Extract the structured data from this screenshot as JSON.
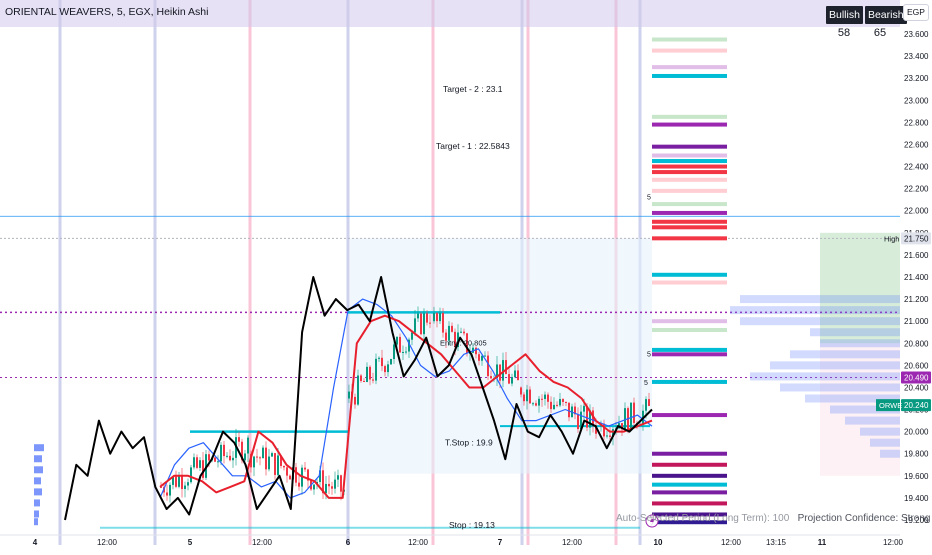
{
  "header": {
    "title": "ORIENTAL WEAVERS, 5, EGX, Heikin Ashi",
    "currency": "EGP"
  },
  "sentiment": {
    "bullish_label": "Bullish",
    "bearish_label": "Bearish",
    "bullish_value": "58",
    "bearish_value": "65"
  },
  "price_axis": {
    "ticks": [
      "23.600",
      "23.400",
      "23.200",
      "23.000",
      "22.800",
      "22.600",
      "22.400",
      "22.200",
      "22.000",
      "21.800",
      "21.600",
      "21.400",
      "21.200",
      "21.000",
      "20.800",
      "20.600",
      "20.400",
      "20.200",
      "20.000",
      "19.800",
      "19.600",
      "19.400",
      "19.200"
    ],
    "high_label": "High",
    "high_value": "21.750",
    "last_value": "20.490",
    "symbol_label": "ORWE",
    "symbol_price": "20.240"
  },
  "time_axis": {
    "ticks": [
      "4",
      "12:00",
      "5",
      "12:00",
      "6",
      "12:00",
      "7",
      "12:00",
      "10",
      "12:00",
      "13:15",
      "11",
      "12:00"
    ]
  },
  "annotations": {
    "target2": "Target - 2 : 23.1",
    "target1": "Target - 1 : 22.5843",
    "tstop": "T.Stop : 19.9",
    "stop": "Stop : 19.13",
    "entry": "Entry : 20.805",
    "fives": [
      "5",
      "5",
      "5"
    ]
  },
  "footer": {
    "autoselect": "Auto-Sel",
    "period_hidden": "ected Period (Long Term): 100",
    "confidence": "Projection Confidence: Strong"
  },
  "colors": {
    "bull_candle": "#089981",
    "bear_candle": "#f23645",
    "red_line": "#e8202d",
    "blue_line": "#2962ff",
    "black_line": "#000000",
    "teal_level": "#00bcd4",
    "purple_dotted": "#9c27b0",
    "session_marker_pink": "#f8bbd0",
    "session_marker_blue": "#c5cae9"
  },
  "chart_data": {
    "type": "candlestick",
    "title": "ORIENTAL WEAVERS, 5, EGX, Heikin Ashi",
    "ylim": [
      19.1,
      23.7
    ],
    "sessions": [
      "4",
      "5",
      "6",
      "7",
      "10",
      "11"
    ],
    "levels": {
      "high": 21.75,
      "last": 20.49,
      "current": 20.24,
      "target_1": 22.5843,
      "target_2": 23.1,
      "entry": 20.805,
      "trailing_stop": 19.9,
      "stop": 19.13
    },
    "black_line": [
      19.2,
      19.7,
      19.6,
      20.1,
      19.8,
      20.0,
      19.85,
      19.95,
      19.5,
      19.3,
      19.4,
      19.25,
      19.6,
      19.75,
      20.0,
      19.9,
      19.7,
      19.3,
      19.45,
      19.6,
      19.3,
      20.9,
      21.4,
      21.05,
      21.2,
      21.1,
      21.15,
      21.0,
      21.4,
      20.9,
      20.5,
      20.65,
      20.85,
      20.5,
      20.6,
      20.85,
      20.7,
      20.4,
      20.1,
      19.75,
      20.25,
      20.0,
      19.95,
      20.15,
      20.0,
      19.8,
      20.1,
      20.05,
      19.85,
      20.05,
      20.0,
      20.1,
      20.2
    ],
    "red_line": [
      19.5,
      19.6,
      19.6,
      19.55,
      19.45,
      19.5,
      19.55,
      20.0,
      19.9,
      19.7,
      19.6,
      19.55,
      19.4,
      19.4,
      20.8,
      21.0,
      21.05,
      21.0,
      20.9,
      20.8,
      20.7,
      20.55,
      20.4,
      20.4,
      20.5,
      20.6,
      20.7,
      20.55,
      20.45,
      20.4,
      20.3,
      20.1,
      20.0,
      20.0,
      20.05,
      20.1
    ],
    "blue_line": [
      19.4,
      19.7,
      19.85,
      19.9,
      19.75,
      19.6,
      19.6,
      19.5,
      19.55,
      19.4,
      19.45,
      19.6,
      20.4,
      21.1,
      21.2,
      21.15,
      21.05,
      20.85,
      20.6,
      20.5,
      20.55,
      20.7,
      20.75,
      20.55,
      20.3,
      20.1,
      20.1,
      20.15,
      20.2,
      20.15,
      20.1,
      20.05,
      20.1,
      20.15,
      20.05
    ]
  }
}
